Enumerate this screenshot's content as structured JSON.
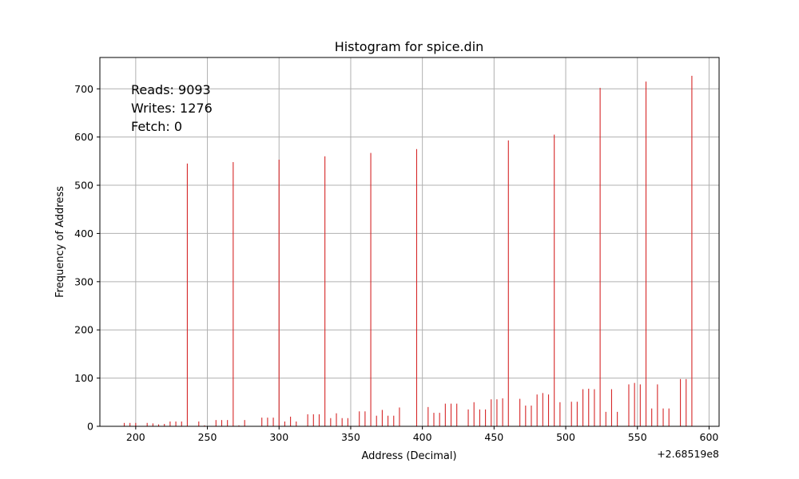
{
  "chart_data": {
    "type": "bar",
    "title": "Histogram for spice.din",
    "xlabel": "Address (Decimal)",
    "ylabel": "Frequency of Address",
    "offset_text": "+2.68519e8",
    "xlim": [
      175,
      607
    ],
    "ylim": [
      0,
      765
    ],
    "xticks": [
      200,
      250,
      300,
      350,
      400,
      450,
      500,
      550,
      600
    ],
    "yticks": [
      0,
      100,
      200,
      300,
      400,
      500,
      600,
      700
    ],
    "grid": true,
    "color": "#d62728",
    "annotations": [
      "Reads: 9093",
      "Writes: 1276",
      "Fetch: 0"
    ],
    "x": [
      192,
      196,
      200,
      208,
      212,
      216,
      220,
      224,
      228,
      232,
      236,
      244,
      248,
      256,
      260,
      264,
      268,
      272,
      276,
      288,
      292,
      296,
      300,
      304,
      308,
      312,
      320,
      324,
      328,
      332,
      336,
      340,
      344,
      348,
      356,
      360,
      364,
      368,
      372,
      376,
      380,
      384,
      396,
      404,
      408,
      412,
      416,
      420,
      424,
      432,
      436,
      440,
      444,
      448,
      452,
      456,
      460,
      468,
      472,
      476,
      480,
      484,
      488,
      492,
      496,
      504,
      508,
      512,
      516,
      520,
      524,
      528,
      532,
      536,
      544,
      548,
      552,
      556,
      560,
      564,
      568,
      572,
      580,
      584,
      588
    ],
    "values": [
      7,
      7,
      7,
      7,
      6,
      4,
      5,
      10,
      10,
      10,
      545,
      10,
      2,
      13,
      13,
      13,
      548,
      2,
      13,
      18,
      18,
      18,
      553,
      10,
      20,
      10,
      25,
      25,
      25,
      560,
      17,
      27,
      17,
      17,
      31,
      31,
      567,
      22,
      34,
      22,
      22,
      39,
      575,
      40,
      28,
      28,
      47,
      47,
      47,
      35,
      50,
      35,
      35,
      56,
      56,
      58,
      593,
      57,
      43,
      43,
      66,
      69,
      66,
      605,
      50,
      51,
      51,
      77,
      78,
      77,
      702,
      30,
      77,
      30,
      87,
      90,
      87,
      715,
      37,
      87,
      37,
      37,
      98,
      98,
      727
    ]
  }
}
